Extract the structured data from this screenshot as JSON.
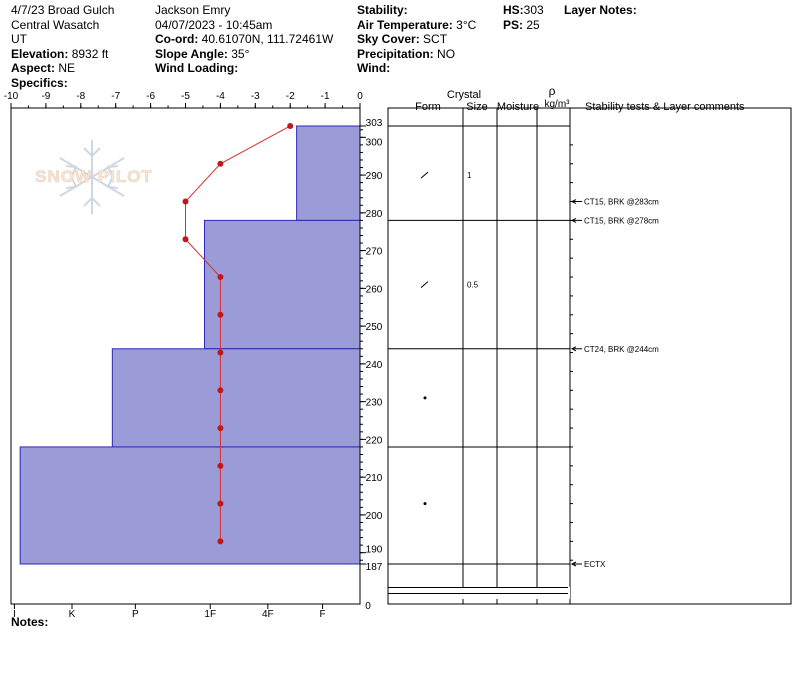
{
  "header": {
    "col1": {
      "line1": "4/7/23 Broad Gulch",
      "line2": "Central Wasatch",
      "line3": "UT",
      "elevation_label": "Elevation:",
      "elevation_value": " 8932 ft",
      "aspect_label": "Aspect:",
      "aspect_value": " NE",
      "specifics_label": "Specifics:"
    },
    "col2": {
      "observer": "Jackson Emry",
      "datetime": "04/07/2023 - 10:45am",
      "coord_label": "Co-ord:",
      "coord_value": " 40.61070N, 111.72461W",
      "slope_label": "Slope Angle:",
      "slope_value": " 35°",
      "wind_loading_label": "Wind Loading:"
    },
    "col3": {
      "stability_label": "Stability:",
      "air_temp_label": "Air Temperature:",
      "air_temp_value": " 3°C",
      "sky_label": "Sky Cover:",
      "sky_value": " SCT",
      "precip_label": "Precipitation:",
      "precip_value": " NO",
      "wind_label": "Wind:"
    },
    "col4": {
      "hs_label": "HS:",
      "hs_value": "303",
      "ps_label": "PS:",
      "ps_value": " 25"
    },
    "layer_notes_label": "Layer Notes:"
  },
  "watermark": "SNOW PILOT",
  "notes_label": "Notes:",
  "table_headers": {
    "crystal": "Crystal",
    "form": "Form",
    "size": "Size",
    "moisture": "Moisture",
    "rho": "ρ",
    "density_unit": "kg/m³",
    "stability": "Stability tests & Layer comments"
  },
  "chart_data": {
    "type": "snow-profile",
    "temperature_axis": {
      "ticks": [
        "-10",
        "-9",
        "-8",
        "-7",
        "-6",
        "-5",
        "-4",
        "-3",
        "-2",
        "-1",
        "0"
      ],
      "range": [
        -10,
        0
      ]
    },
    "hardness_axis": {
      "ticks": [
        "I",
        "K",
        "P",
        "1F",
        "4F",
        "F"
      ]
    },
    "height_axis": {
      "range": [
        187,
        303
      ],
      "ticks": [
        "303",
        "300",
        "290",
        "280",
        "270",
        "260",
        "250",
        "240",
        "230",
        "220",
        "210",
        "200",
        "190",
        "187"
      ],
      "tick_values": [
        303,
        300,
        290,
        280,
        270,
        260,
        250,
        240,
        230,
        220,
        210,
        200,
        190,
        187
      ],
      "bottom_label": "0"
    },
    "temperature_profile": [
      {
        "height": 303,
        "temp": -2
      },
      {
        "height": 293,
        "temp": -4
      },
      {
        "height": 283,
        "temp": -5
      },
      {
        "height": 273,
        "temp": -5
      },
      {
        "height": 263,
        "temp": -4
      },
      {
        "height": 253,
        "temp": -4
      },
      {
        "height": 243,
        "temp": -4
      },
      {
        "height": 233,
        "temp": -4
      },
      {
        "height": 223,
        "temp": -4
      },
      {
        "height": 213,
        "temp": -4
      },
      {
        "height": 203,
        "temp": -4
      },
      {
        "height": 193,
        "temp": -4
      }
    ],
    "layers": [
      {
        "top": 303,
        "bottom": 278,
        "hardness_units": 1.1,
        "form_symbol": "/",
        "form_height": 290,
        "size": "1"
      },
      {
        "top": 278,
        "bottom": 244,
        "hardness_units": 2.7,
        "form_symbol": "/",
        "form_height": 261,
        "size": "0.5"
      },
      {
        "top": 244,
        "bottom": 218,
        "hardness_units": 4.3,
        "form_symbol": "•",
        "form_height": 231,
        "size": ""
      },
      {
        "top": 218,
        "bottom": 187,
        "hardness_units": 5.9,
        "form_symbol": "•",
        "form_height": 203,
        "size": ""
      }
    ],
    "stability_tests": [
      {
        "height": 283,
        "label": "CT15, BRK @283cm"
      },
      {
        "height": 278,
        "label": "CT15, BRK @278cm"
      },
      {
        "height": 244,
        "label": "CT24, BRK @244cm"
      },
      {
        "height": 187,
        "label": "ECTX"
      }
    ],
    "colors": {
      "layer_fill": "#9b9bd8",
      "layer_stroke": "#2a2ab0",
      "temp_line": "#d63030",
      "temp_point": "#c01818"
    }
  }
}
